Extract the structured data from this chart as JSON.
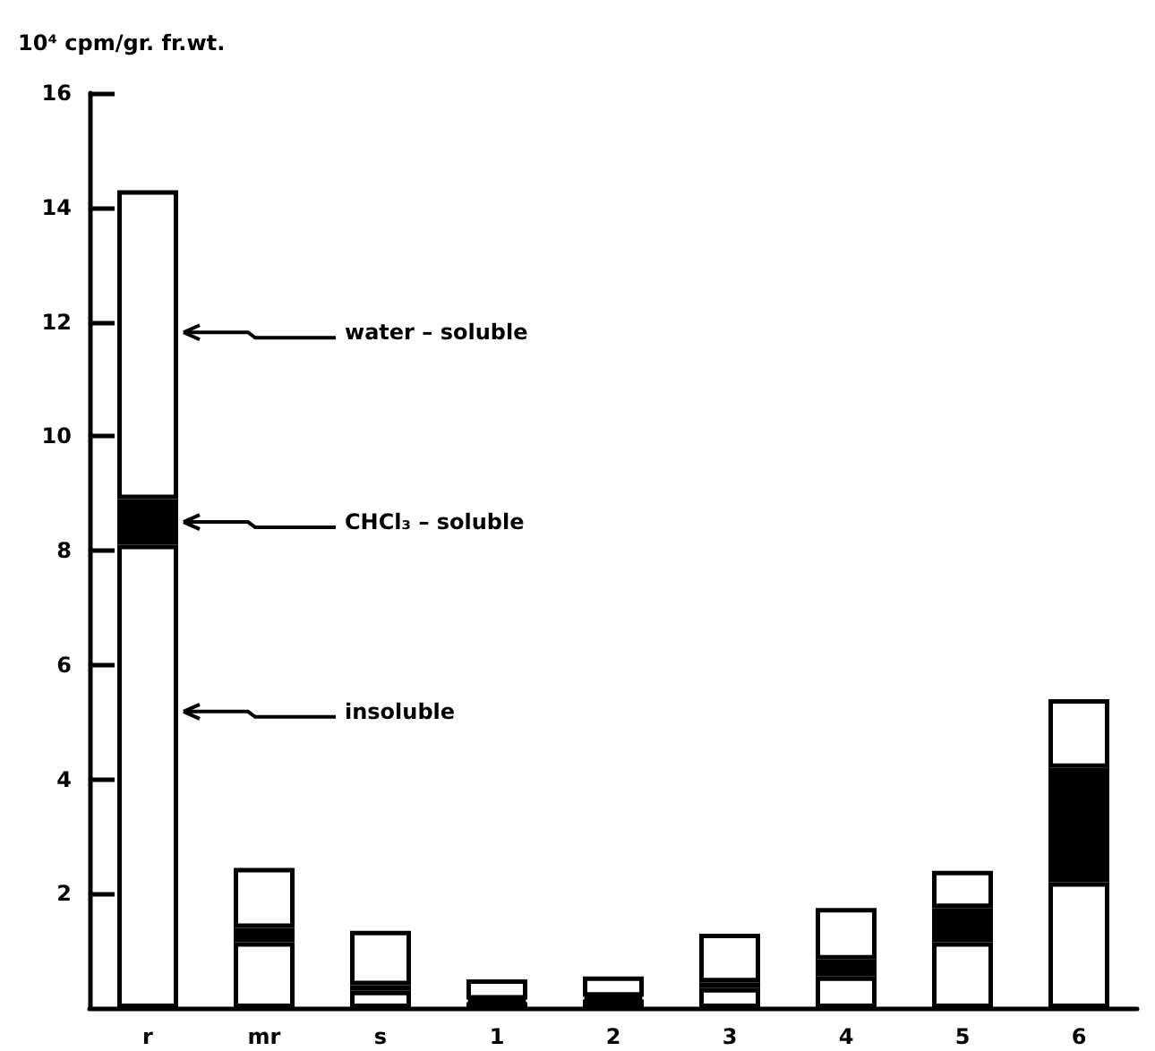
{
  "chart_data": {
    "type": "bar",
    "stacked": true,
    "ylabel": "10⁴ cpm/gr. fr.wt.",
    "categories": [
      "r",
      "mr",
      "s",
      "1",
      "2",
      "3",
      "4",
      "5",
      "6"
    ],
    "series": [
      {
        "color": "#ffffff",
        "values": [
          8.1,
          1.15,
          0.3,
          0.1,
          0.15,
          0.35,
          0.55,
          1.15,
          2.2
        ]
      },
      {
        "color": "#000000",
        "values": [
          0.8,
          0.25,
          0.1,
          0.05,
          0.05,
          0.1,
          0.3,
          0.6,
          2.0
        ]
      },
      {
        "color": "#ffffff",
        "values": [
          5.4,
          1.05,
          0.95,
          0.35,
          0.35,
          0.85,
          0.9,
          0.65,
          1.2
        ]
      }
    ],
    "ylim": [
      0,
      16
    ],
    "yticks": [
      2,
      4,
      6,
      8,
      10,
      12,
      14,
      16
    ],
    "grid": false,
    "annotations": [
      "water – soluble",
      "CHCl₃ – soluble",
      "insoluble"
    ]
  }
}
